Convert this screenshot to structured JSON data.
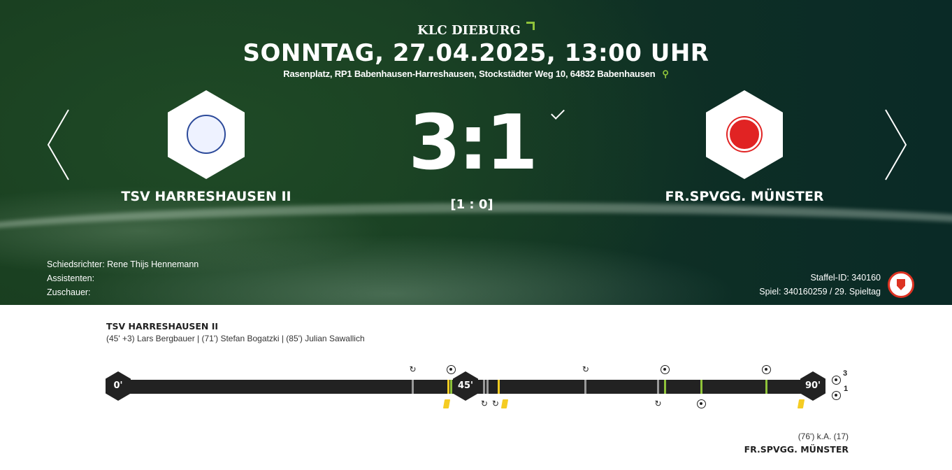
{
  "header": {
    "league": "KLC DIEBURG",
    "datetime": "SONNTAG, 27.04.2025, 13:00 UHR",
    "venue": "Rasenplatz, RP1 Babenhausen-Harreshausen, Stockstädter Weg 10, 64832 Babenhausen"
  },
  "home": {
    "name": "TSV HARRESHAUSEN II",
    "scorers": "(45' +3) Lars Bergbauer | (71') Stefan Bogatzki | (85') Julian Sawallich",
    "goals": "3"
  },
  "away": {
    "name": "FR.SPVGG. MÜNSTER",
    "scorers": "(76') k.A. (17)",
    "goals": "1"
  },
  "score": {
    "final": "3:1",
    "halftime": "[1 : 0]"
  },
  "officials": {
    "referee": "Schiedsrichter: Rene Thijs Hennemann",
    "assistants": "Assistenten:",
    "spectators": "Zuschauer:"
  },
  "ids": {
    "staffel": "Staffel-ID: 340160",
    "spiel": "Spiel: 340160259 / 29. Spieltag"
  },
  "timeline": {
    "marks": [
      "0'",
      "45'",
      "90'"
    ],
    "events": [
      {
        "minute": 40,
        "half": 1,
        "team": "home",
        "type": "substitution"
      },
      {
        "minute": 45,
        "half": 1,
        "team": "away",
        "type": "yellow-card"
      },
      {
        "minute": 45.4,
        "half": 1,
        "team": "home",
        "type": "goal"
      },
      {
        "minute": 46,
        "half": 2,
        "team": "away",
        "type": "substitution"
      },
      {
        "minute": 46.4,
        "half": 2,
        "team": "away",
        "type": "substitution"
      },
      {
        "minute": 48,
        "half": 2,
        "team": "away",
        "type": "yellow-card"
      },
      {
        "minute": 60,
        "half": 2,
        "team": "home",
        "type": "substitution"
      },
      {
        "minute": 70,
        "half": 2,
        "team": "away",
        "type": "substitution"
      },
      {
        "minute": 71,
        "half": 2,
        "team": "home",
        "type": "goal"
      },
      {
        "minute": 76,
        "half": 2,
        "team": "away",
        "type": "goal"
      },
      {
        "minute": 85,
        "half": 2,
        "team": "home",
        "type": "goal"
      },
      {
        "minute": 90,
        "half": 2,
        "team": "away",
        "type": "yellow-card"
      }
    ]
  },
  "colors": {
    "goal": "#8fc33a",
    "yellow-card": "#f5cc22",
    "substitution": "#999999",
    "accent": "#8fc33a"
  }
}
